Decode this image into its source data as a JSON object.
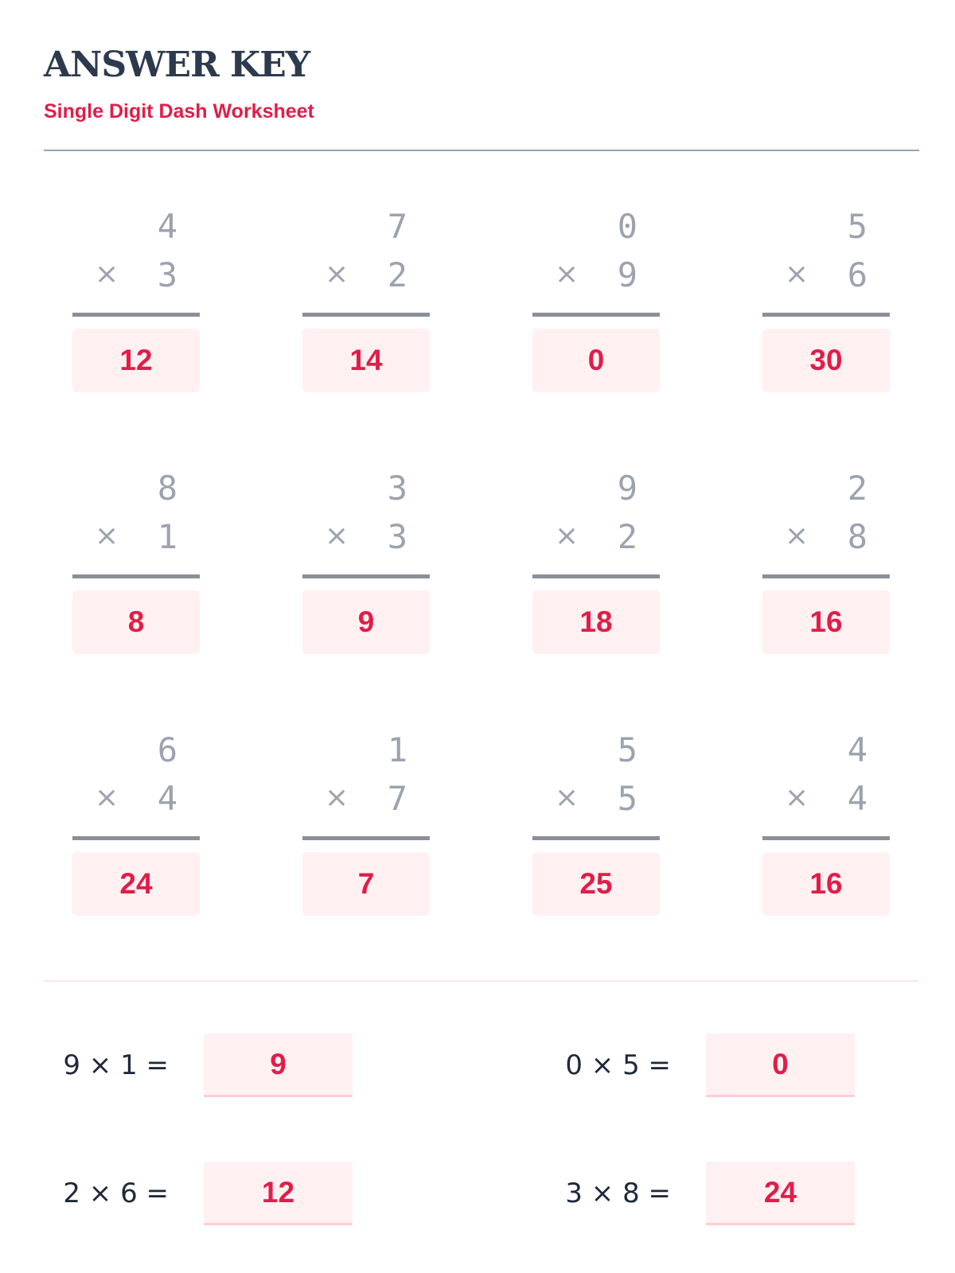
{
  "header": {
    "title": "ANSWER KEY",
    "subtitle": "Single Digit Dash Worksheet"
  },
  "operator": "×",
  "problems": [
    {
      "a": "4",
      "b": "3",
      "answer": "12"
    },
    {
      "a": "7",
      "b": "2",
      "answer": "14"
    },
    {
      "a": "0",
      "b": "9",
      "answer": "0"
    },
    {
      "a": "5",
      "b": "6",
      "answer": "30"
    },
    {
      "a": "8",
      "b": "1",
      "answer": "8"
    },
    {
      "a": "3",
      "b": "3",
      "answer": "9"
    },
    {
      "a": "9",
      "b": "2",
      "answer": "18"
    },
    {
      "a": "2",
      "b": "8",
      "answer": "16"
    },
    {
      "a": "6",
      "b": "4",
      "answer": "24"
    },
    {
      "a": "1",
      "b": "7",
      "answer": "7"
    },
    {
      "a": "5",
      "b": "5",
      "answer": "25"
    },
    {
      "a": "4",
      "b": "4",
      "answer": "16"
    }
  ],
  "equations": [
    {
      "text": "9 × 1 =",
      "answer": "9"
    },
    {
      "text": "0 × 5 =",
      "answer": "0"
    },
    {
      "text": "2 × 6 =",
      "answer": "12"
    },
    {
      "text": "3 × 8 =",
      "answer": "24"
    }
  ],
  "colors": {
    "accent": "#e11d48",
    "answer_bg": "#fff1f2",
    "title": "#2d3a4e"
  }
}
